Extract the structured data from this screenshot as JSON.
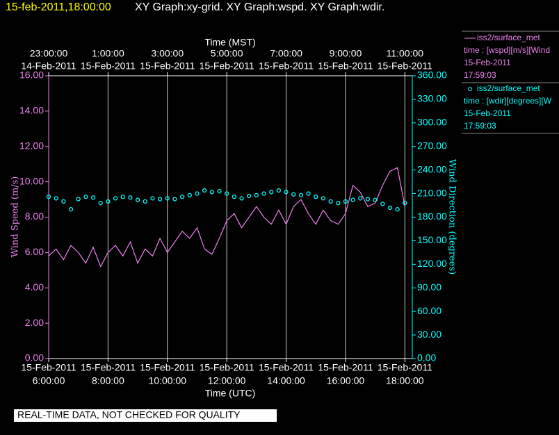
{
  "chart_data": {
    "type": "line",
    "title": "15-feb-2011,18:00:00",
    "subtitle": "XY Graph:xy-grid.  XY Graph:wspd.  XY Graph:wdir.",
    "xlabel": "Time (UTC)",
    "x2label": "Time (MST)",
    "ylabel": "Wind Speed (m/s)",
    "y2label": "Wind Direction (degrees)",
    "note": "REAL-TIME DATA, NOT CHECKED FOR QUALITY",
    "grid": true,
    "xlim": [
      6,
      18.25
    ],
    "xticks": [
      {
        "value": 6,
        "label": "6:00:00",
        "date": "15-Feb-2011"
      },
      {
        "value": 8,
        "label": "8:00:00",
        "date": "15-Feb-2011"
      },
      {
        "value": 10,
        "label": "10:00:00",
        "date": "15-Feb-2011"
      },
      {
        "value": 12,
        "label": "12:00:00",
        "date": "15-Feb-2011"
      },
      {
        "value": 14,
        "label": "14:00:00",
        "date": "15-Feb-2011"
      },
      {
        "value": 16,
        "label": "16:00:00",
        "date": "15-Feb-2011"
      },
      {
        "value": 18,
        "label": "18:00:00",
        "date": "15-Feb-2011"
      }
    ],
    "x2ticks": [
      {
        "value": 6,
        "label": "23:00:00",
        "date": "14-Feb-2011"
      },
      {
        "value": 8,
        "label": "1:00:00",
        "date": "15-Feb-2011"
      },
      {
        "value": 10,
        "label": "3:00:00",
        "date": "15-Feb-2011"
      },
      {
        "value": 12,
        "label": "5:00:00",
        "date": "15-Feb-2011"
      },
      {
        "value": 14,
        "label": "7:00:00",
        "date": "15-Feb-2011"
      },
      {
        "value": 16,
        "label": "9:00:00",
        "date": "15-Feb-2011"
      },
      {
        "value": 18,
        "label": "11:00:00",
        "date": "15-Feb-2011"
      }
    ],
    "ylim": [
      0,
      16
    ],
    "yticks": [
      {
        "value": 0,
        "label": "0.00"
      },
      {
        "value": 2,
        "label": "2.00"
      },
      {
        "value": 4,
        "label": "4.00"
      },
      {
        "value": 6,
        "label": "6.00"
      },
      {
        "value": 8,
        "label": "8.00"
      },
      {
        "value": 10,
        "label": "10.00"
      },
      {
        "value": 12,
        "label": "12.00"
      },
      {
        "value": 14,
        "label": "14.00"
      },
      {
        "value": 16,
        "label": "16.00"
      }
    ],
    "y2lim": [
      0,
      360
    ],
    "y2ticks": [
      {
        "value": 0,
        "label": "0.00"
      },
      {
        "value": 30,
        "label": "30.00"
      },
      {
        "value": 60,
        "label": "60.00"
      },
      {
        "value": 90,
        "label": "90.00"
      },
      {
        "value": 120,
        "label": "120.00"
      },
      {
        "value": 150,
        "label": "150.00"
      },
      {
        "value": 180,
        "label": "180.00"
      },
      {
        "value": 210,
        "label": "210.00"
      },
      {
        "value": 240,
        "label": "240.00"
      },
      {
        "value": 270,
        "label": "270.00"
      },
      {
        "value": 300,
        "label": "300.00"
      },
      {
        "value": 330,
        "label": "330.00"
      },
      {
        "value": 360,
        "label": "360.00"
      }
    ],
    "x": [
      6,
      6.25,
      6.5,
      6.75,
      7,
      7.25,
      7.5,
      7.75,
      8,
      8.25,
      8.5,
      8.75,
      9,
      9.25,
      9.5,
      9.75,
      10,
      10.25,
      10.5,
      10.75,
      11,
      11.25,
      11.5,
      11.75,
      12,
      12.25,
      12.5,
      12.75,
      13,
      13.25,
      13.5,
      13.75,
      14,
      14.25,
      14.5,
      14.75,
      15,
      15.25,
      15.5,
      15.75,
      16,
      16.25,
      16.5,
      16.75,
      17,
      17.25,
      17.5,
      17.75,
      18
    ],
    "series": [
      {
        "name": "iss2/surface_met",
        "field": "time : [wspd][m/s][Wind",
        "date": "15-Feb-2011",
        "time": "17:59:03",
        "marker": "line",
        "color": "#ee82ee",
        "axis": "y",
        "values": [
          5.8,
          6.2,
          5.6,
          6.4,
          6.0,
          5.4,
          6.3,
          5.2,
          6.0,
          6.4,
          5.8,
          6.6,
          5.4,
          6.2,
          5.8,
          6.8,
          6.0,
          6.6,
          7.2,
          6.8,
          7.4,
          6.2,
          5.9,
          6.8,
          7.8,
          8.2,
          7.4,
          8.0,
          8.6,
          8.0,
          7.6,
          8.4,
          7.6,
          8.6,
          9.0,
          8.2,
          7.6,
          8.4,
          7.8,
          7.6,
          8.2,
          9.8,
          9.4,
          8.6,
          8.8,
          9.8,
          10.6,
          10.8,
          8.6
        ]
      },
      {
        "name": "iss2/surface_met",
        "field": "time : [wdir][degrees][W",
        "date": "15-Feb-2011",
        "time": "17:59:03",
        "marker": "circle",
        "color": "#00ffff",
        "axis": "y2",
        "values": [
          206,
          204,
          200,
          190,
          203,
          206,
          205,
          198,
          200,
          204,
          206,
          205,
          202,
          200,
          204,
          203,
          204,
          203,
          206,
          208,
          210,
          214,
          212,
          213,
          210,
          206,
          204,
          207,
          208,
          210,
          212,
          214,
          212,
          209,
          208,
          210,
          206,
          204,
          200,
          198,
          200,
          202,
          204,
          203,
          202,
          197,
          192,
          190,
          198
        ]
      }
    ]
  }
}
